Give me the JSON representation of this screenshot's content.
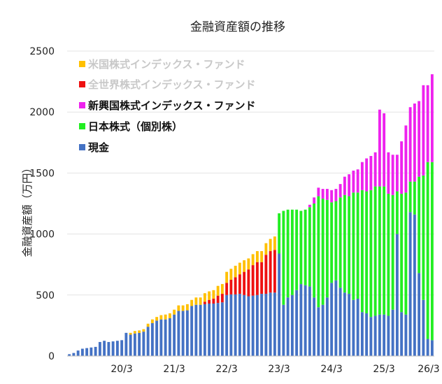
{
  "chart_data": {
    "type": "bar",
    "stacked": true,
    "title": "金融資産額の推移",
    "xlabel": "",
    "ylabel": "金融資産額（万円）",
    "ylim": [
      0,
      2500
    ],
    "yticks": [
      0,
      500,
      1000,
      1500,
      2000,
      2500
    ],
    "xtick_labels": [
      "20/3",
      "21/3",
      "22/3",
      "23/3",
      "24/3",
      "25/3",
      "26/3"
    ],
    "xtick_indices": [
      12,
      24,
      36,
      48,
      60,
      72,
      84
    ],
    "legend_position": "top-left",
    "colors": {
      "cash": "#4472C4",
      "jp_stock": "#22EE22",
      "em_index": "#EE22EE",
      "world_index": "#EE1111",
      "us_index": "#FFC000"
    },
    "series": [
      {
        "key": "cash",
        "name": "現金",
        "values": [
          15,
          25,
          45,
          60,
          65,
          70,
          75,
          115,
          125,
          115,
          120,
          125,
          130,
          190,
          175,
          185,
          190,
          200,
          240,
          270,
          290,
          300,
          300,
          310,
          340,
          370,
          370,
          375,
          410,
          420,
          420,
          425,
          430,
          430,
          435,
          440,
          500,
          505,
          505,
          510,
          500,
          490,
          495,
          500,
          510,
          510,
          520,
          520,
          840,
          420,
          480,
          500,
          540,
          590,
          580,
          570,
          480,
          400,
          420,
          480,
          600,
          620,
          560,
          520,
          510,
          460,
          470,
          360,
          350,
          320,
          330,
          340,
          340,
          330,
          380,
          1000,
          360,
          340,
          1180,
          1160,
          680,
          460,
          140,
          130
        ]
      },
      {
        "key": "jp_stock",
        "name": "日本株式（個別株）",
        "values": [
          0,
          0,
          0,
          0,
          0,
          0,
          0,
          0,
          0,
          0,
          0,
          0,
          0,
          0,
          0,
          0,
          0,
          0,
          0,
          0,
          0,
          0,
          0,
          0,
          0,
          0,
          0,
          0,
          0,
          0,
          0,
          0,
          0,
          0,
          0,
          0,
          0,
          0,
          0,
          0,
          0,
          0,
          0,
          0,
          0,
          0,
          0,
          0,
          330,
          770,
          720,
          700,
          660,
          600,
          620,
          650,
          770,
          910,
          870,
          800,
          660,
          650,
          740,
          800,
          800,
          880,
          870,
          1000,
          1000,
          1040,
          1060,
          1050,
          1050,
          1000,
          940,
          350,
          970,
          1000,
          250,
          270,
          790,
          1020,
          1450,
          1460
        ]
      },
      {
        "key": "em_index",
        "name": "新興国株式インデックス・ファンド",
        "values": [
          0,
          0,
          0,
          0,
          0,
          0,
          0,
          0,
          0,
          0,
          0,
          0,
          0,
          0,
          0,
          0,
          0,
          0,
          0,
          0,
          0,
          0,
          0,
          0,
          0,
          0,
          0,
          0,
          0,
          0,
          0,
          0,
          0,
          0,
          0,
          0,
          0,
          0,
          0,
          0,
          0,
          0,
          0,
          0,
          0,
          0,
          0,
          0,
          0,
          0,
          0,
          0,
          0,
          0,
          0,
          20,
          50,
          70,
          80,
          90,
          100,
          100,
          110,
          150,
          180,
          180,
          190,
          230,
          270,
          280,
          280,
          630,
          600,
          340,
          330,
          300,
          430,
          550,
          610,
          640,
          620,
          740,
          630,
          720
        ]
      },
      {
        "key": "world_index",
        "name": "全世界株式インデックス・ファンド",
        "values": [
          0,
          0,
          0,
          0,
          0,
          0,
          0,
          0,
          0,
          0,
          0,
          0,
          0,
          0,
          0,
          0,
          0,
          0,
          0,
          0,
          0,
          0,
          0,
          0,
          0,
          0,
          0,
          0,
          0,
          0,
          0,
          20,
          30,
          40,
          60,
          70,
          100,
          120,
          140,
          160,
          190,
          220,
          250,
          270,
          260,
          320,
          340,
          350,
          0,
          0,
          0,
          0,
          0,
          0,
          0,
          0,
          0,
          0,
          0,
          0,
          0,
          0,
          0,
          0,
          0,
          0,
          0,
          0,
          0,
          0,
          0,
          0,
          0,
          0,
          0,
          0,
          0,
          0,
          0,
          0,
          0,
          0,
          0,
          0
        ]
      },
      {
        "key": "us_index",
        "name": "米国株式インデックス・ファンド",
        "values": [
          0,
          0,
          0,
          0,
          0,
          0,
          0,
          0,
          0,
          0,
          0,
          0,
          0,
          0,
          15,
          20,
          20,
          20,
          25,
          30,
          30,
          35,
          40,
          40,
          40,
          45,
          45,
          50,
          50,
          60,
          60,
          70,
          70,
          70,
          80,
          80,
          90,
          90,
          95,
          95,
          95,
          90,
          90,
          90,
          90,
          95,
          100,
          110,
          0,
          0,
          0,
          0,
          0,
          0,
          0,
          0,
          0,
          0,
          0,
          0,
          0,
          0,
          0,
          0,
          0,
          0,
          0,
          0,
          0,
          0,
          0,
          0,
          0,
          0,
          0,
          0,
          0,
          0,
          0,
          0,
          0,
          0,
          0,
          0
        ]
      }
    ]
  }
}
